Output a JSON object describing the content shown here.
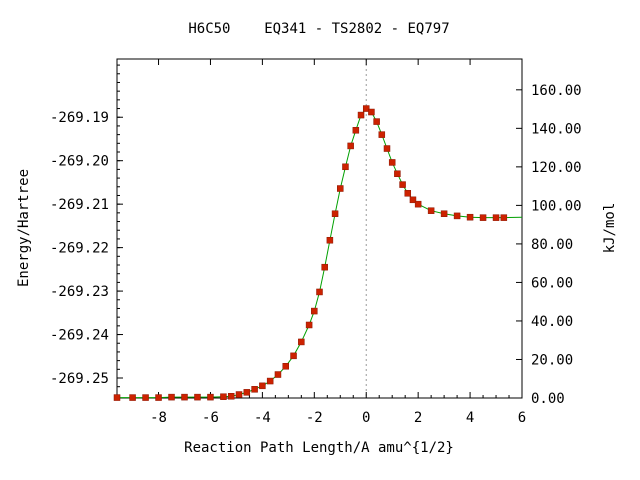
{
  "chart_data": {
    "type": "line",
    "title": "H6C50    EQ341 - TS2802 - EQ797",
    "xlabel": "Reaction Path Length/A amu^{1/2}",
    "ylabel": "Energy/Hartree",
    "y2label": "kJ/mol",
    "xlim": [
      -9.6,
      6.0
    ],
    "ylim": [
      -269.2546,
      -269.1766
    ],
    "y2lim": [
      0.0,
      176.0
    ],
    "x_ticks": [
      -8,
      -6,
      -4,
      -2,
      0,
      2,
      4,
      6
    ],
    "x_tick_labels": [
      "-8",
      "-6",
      "-4",
      "-2",
      "0",
      "2",
      "4",
      "6"
    ],
    "y_ticks": [
      -269.25,
      -269.24,
      -269.23,
      -269.22,
      -269.21,
      -269.2,
      -269.19
    ],
    "y_tick_labels": [
      "-269.25",
      "-269.24",
      "-269.23",
      "-269.22",
      "-269.21",
      "-269.20",
      "-269.19"
    ],
    "y2_ticks": [
      0,
      20,
      40,
      60,
      80,
      100,
      120,
      140,
      160
    ],
    "y2_tick_labels": [
      "0.00",
      "20.00",
      "40.00",
      "60.00",
      "80.00",
      "100.00",
      "120.00",
      "140.00",
      "160.00"
    ],
    "ts_marker_x": 0.0,
    "grid": false,
    "colors": {
      "line": "#00a000",
      "points": "#cc2200",
      "ts_line": "#999999",
      "axis": "#000000"
    },
    "series": [
      {
        "points": [
          [
            -9.6,
            -269.2545
          ],
          [
            -9.0,
            -269.2545
          ],
          [
            -8.5,
            -269.2545
          ],
          [
            -8.0,
            -269.2545
          ],
          [
            -7.5,
            -269.2544
          ],
          [
            -7.0,
            -269.2544
          ],
          [
            -6.5,
            -269.2544
          ],
          [
            -6.0,
            -269.2544
          ],
          [
            -5.5,
            -269.2543
          ],
          [
            -5.2,
            -269.2542
          ],
          [
            -4.9,
            -269.2538
          ],
          [
            -4.6,
            -269.2533
          ],
          [
            -4.3,
            -269.2526
          ],
          [
            -4.0,
            -269.2518
          ],
          [
            -3.7,
            -269.2507
          ],
          [
            -3.4,
            -269.2492
          ],
          [
            -3.1,
            -269.2473
          ],
          [
            -2.8,
            -269.2449
          ],
          [
            -2.5,
            -269.2417
          ],
          [
            -2.2,
            -269.2378
          ],
          [
            -2.0,
            -269.2346
          ],
          [
            -1.8,
            -269.2302
          ],
          [
            -1.6,
            -269.2245
          ],
          [
            -1.4,
            -269.2183
          ],
          [
            -1.2,
            -269.2122
          ],
          [
            -1.0,
            -269.2064
          ],
          [
            -0.8,
            -269.2014
          ],
          [
            -0.6,
            -269.1966
          ],
          [
            -0.4,
            -269.193
          ],
          [
            -0.2,
            -269.1895
          ],
          [
            0.0,
            -269.188
          ],
          [
            0.2,
            -269.1888
          ],
          [
            0.4,
            -269.191
          ],
          [
            0.6,
            -269.194
          ],
          [
            0.8,
            -269.1972
          ],
          [
            1.0,
            -269.2004
          ],
          [
            1.2,
            -269.203
          ],
          [
            1.4,
            -269.2055
          ],
          [
            1.6,
            -269.2075
          ],
          [
            1.8,
            -269.209
          ],
          [
            2.0,
            -269.21
          ],
          [
            2.5,
            -269.2115
          ],
          [
            3.0,
            -269.2122
          ],
          [
            3.5,
            -269.2127
          ],
          [
            4.0,
            -269.213
          ],
          [
            4.5,
            -269.2131
          ],
          [
            5.0,
            -269.2131
          ],
          [
            5.3,
            -269.2131
          ]
        ],
        "line_extension": [
          [
            5.3,
            -269.2131
          ],
          [
            6.0,
            -269.213
          ]
        ]
      }
    ]
  }
}
